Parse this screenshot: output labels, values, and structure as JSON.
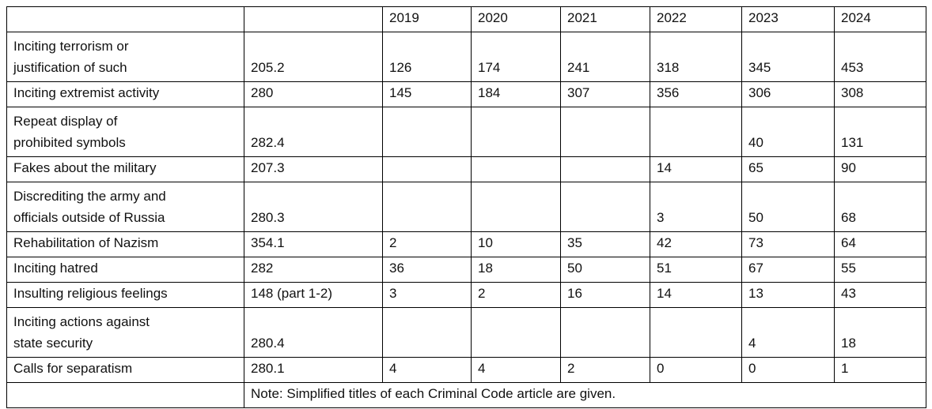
{
  "table": {
    "header": [
      "2019",
      "2020",
      "2021",
      "2022",
      "2023",
      "2024"
    ],
    "rows": [
      [
        "Inciting terrorism or\njustification of such",
        "205.2",
        "126",
        "174",
        "241",
        "318",
        "345",
        "453"
      ],
      [
        "Inciting extremist activity",
        "280",
        "145",
        "184",
        "307",
        "356",
        "306",
        "308"
      ],
      [
        "Repeat display of\nprohibited symbols",
        "282.4",
        null,
        null,
        null,
        null,
        "40",
        "131"
      ],
      [
        "Fakes about the military",
        "207.3",
        null,
        null,
        null,
        "14",
        "65",
        "90"
      ],
      [
        "Discrediting the army and\nofficials outside of Russia",
        "280.3",
        null,
        null,
        null,
        "3",
        "50",
        "68"
      ],
      [
        "Rehabilitation of Nazism",
        "354.1",
        "2",
        "10",
        "35",
        "42",
        "73",
        "64"
      ],
      [
        "Inciting hatred",
        "282",
        "36",
        "18",
        "50",
        "51",
        "67",
        "55"
      ],
      [
        "Insulting religious feelings",
        "148 (part 1-2)",
        "3",
        "2",
        "16",
        "14",
        "13",
        "43"
      ],
      [
        "Inciting actions against\nstate security",
        "280.4",
        null,
        null,
        null,
        null,
        "4",
        "18"
      ],
      [
        "Calls for separatism",
        "280.1",
        "4",
        "4",
        "2",
        "0",
        "0",
        "1"
      ]
    ],
    "note": "Note: Simplified titles of each Criminal Code article are given."
  }
}
